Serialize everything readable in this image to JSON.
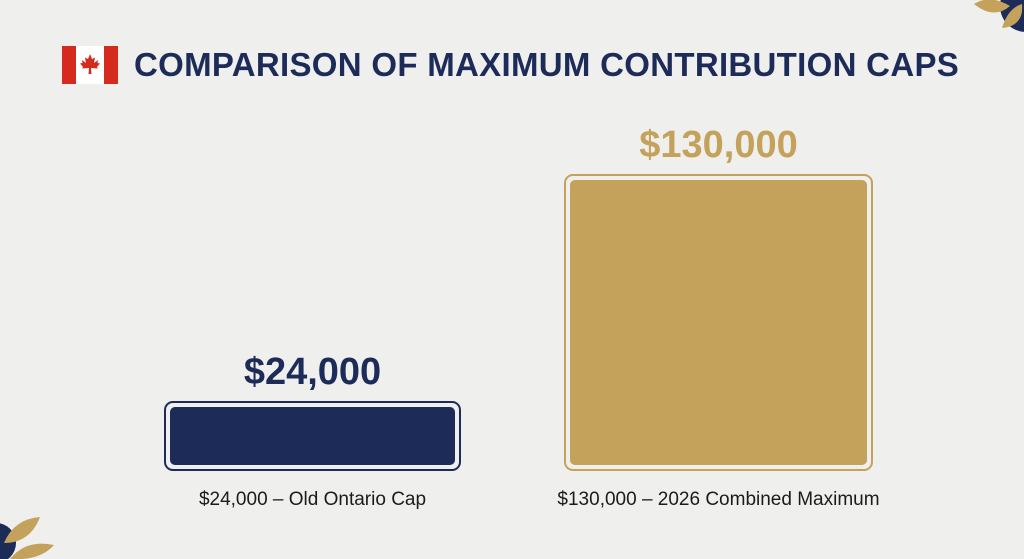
{
  "title": "COMPARISON OF MAXIMUM CONTRIBUTION CAPS",
  "flag_icon": "canada-flag-icon",
  "colors": {
    "navy": "#1c2b58",
    "gold": "#c4a25b",
    "background": "#efefee",
    "flag_red": "#d52b1e"
  },
  "chart_data": {
    "type": "bar",
    "title": "COMPARISON OF MAXIMUM CONTRIBUTION CAPS",
    "categories": [
      "$24,000 – Old Ontario Cap",
      "$130,000 – 2026 Combined Maximum"
    ],
    "values": [
      24000,
      130000
    ],
    "value_labels": [
      "$24,000",
      "$130,000"
    ],
    "bar_colors": [
      "#1c2b58",
      "#c4a25b"
    ],
    "xlabel": "",
    "ylabel": "",
    "ylim": [
      0,
      130000
    ],
    "grid": false,
    "legend": "none"
  }
}
